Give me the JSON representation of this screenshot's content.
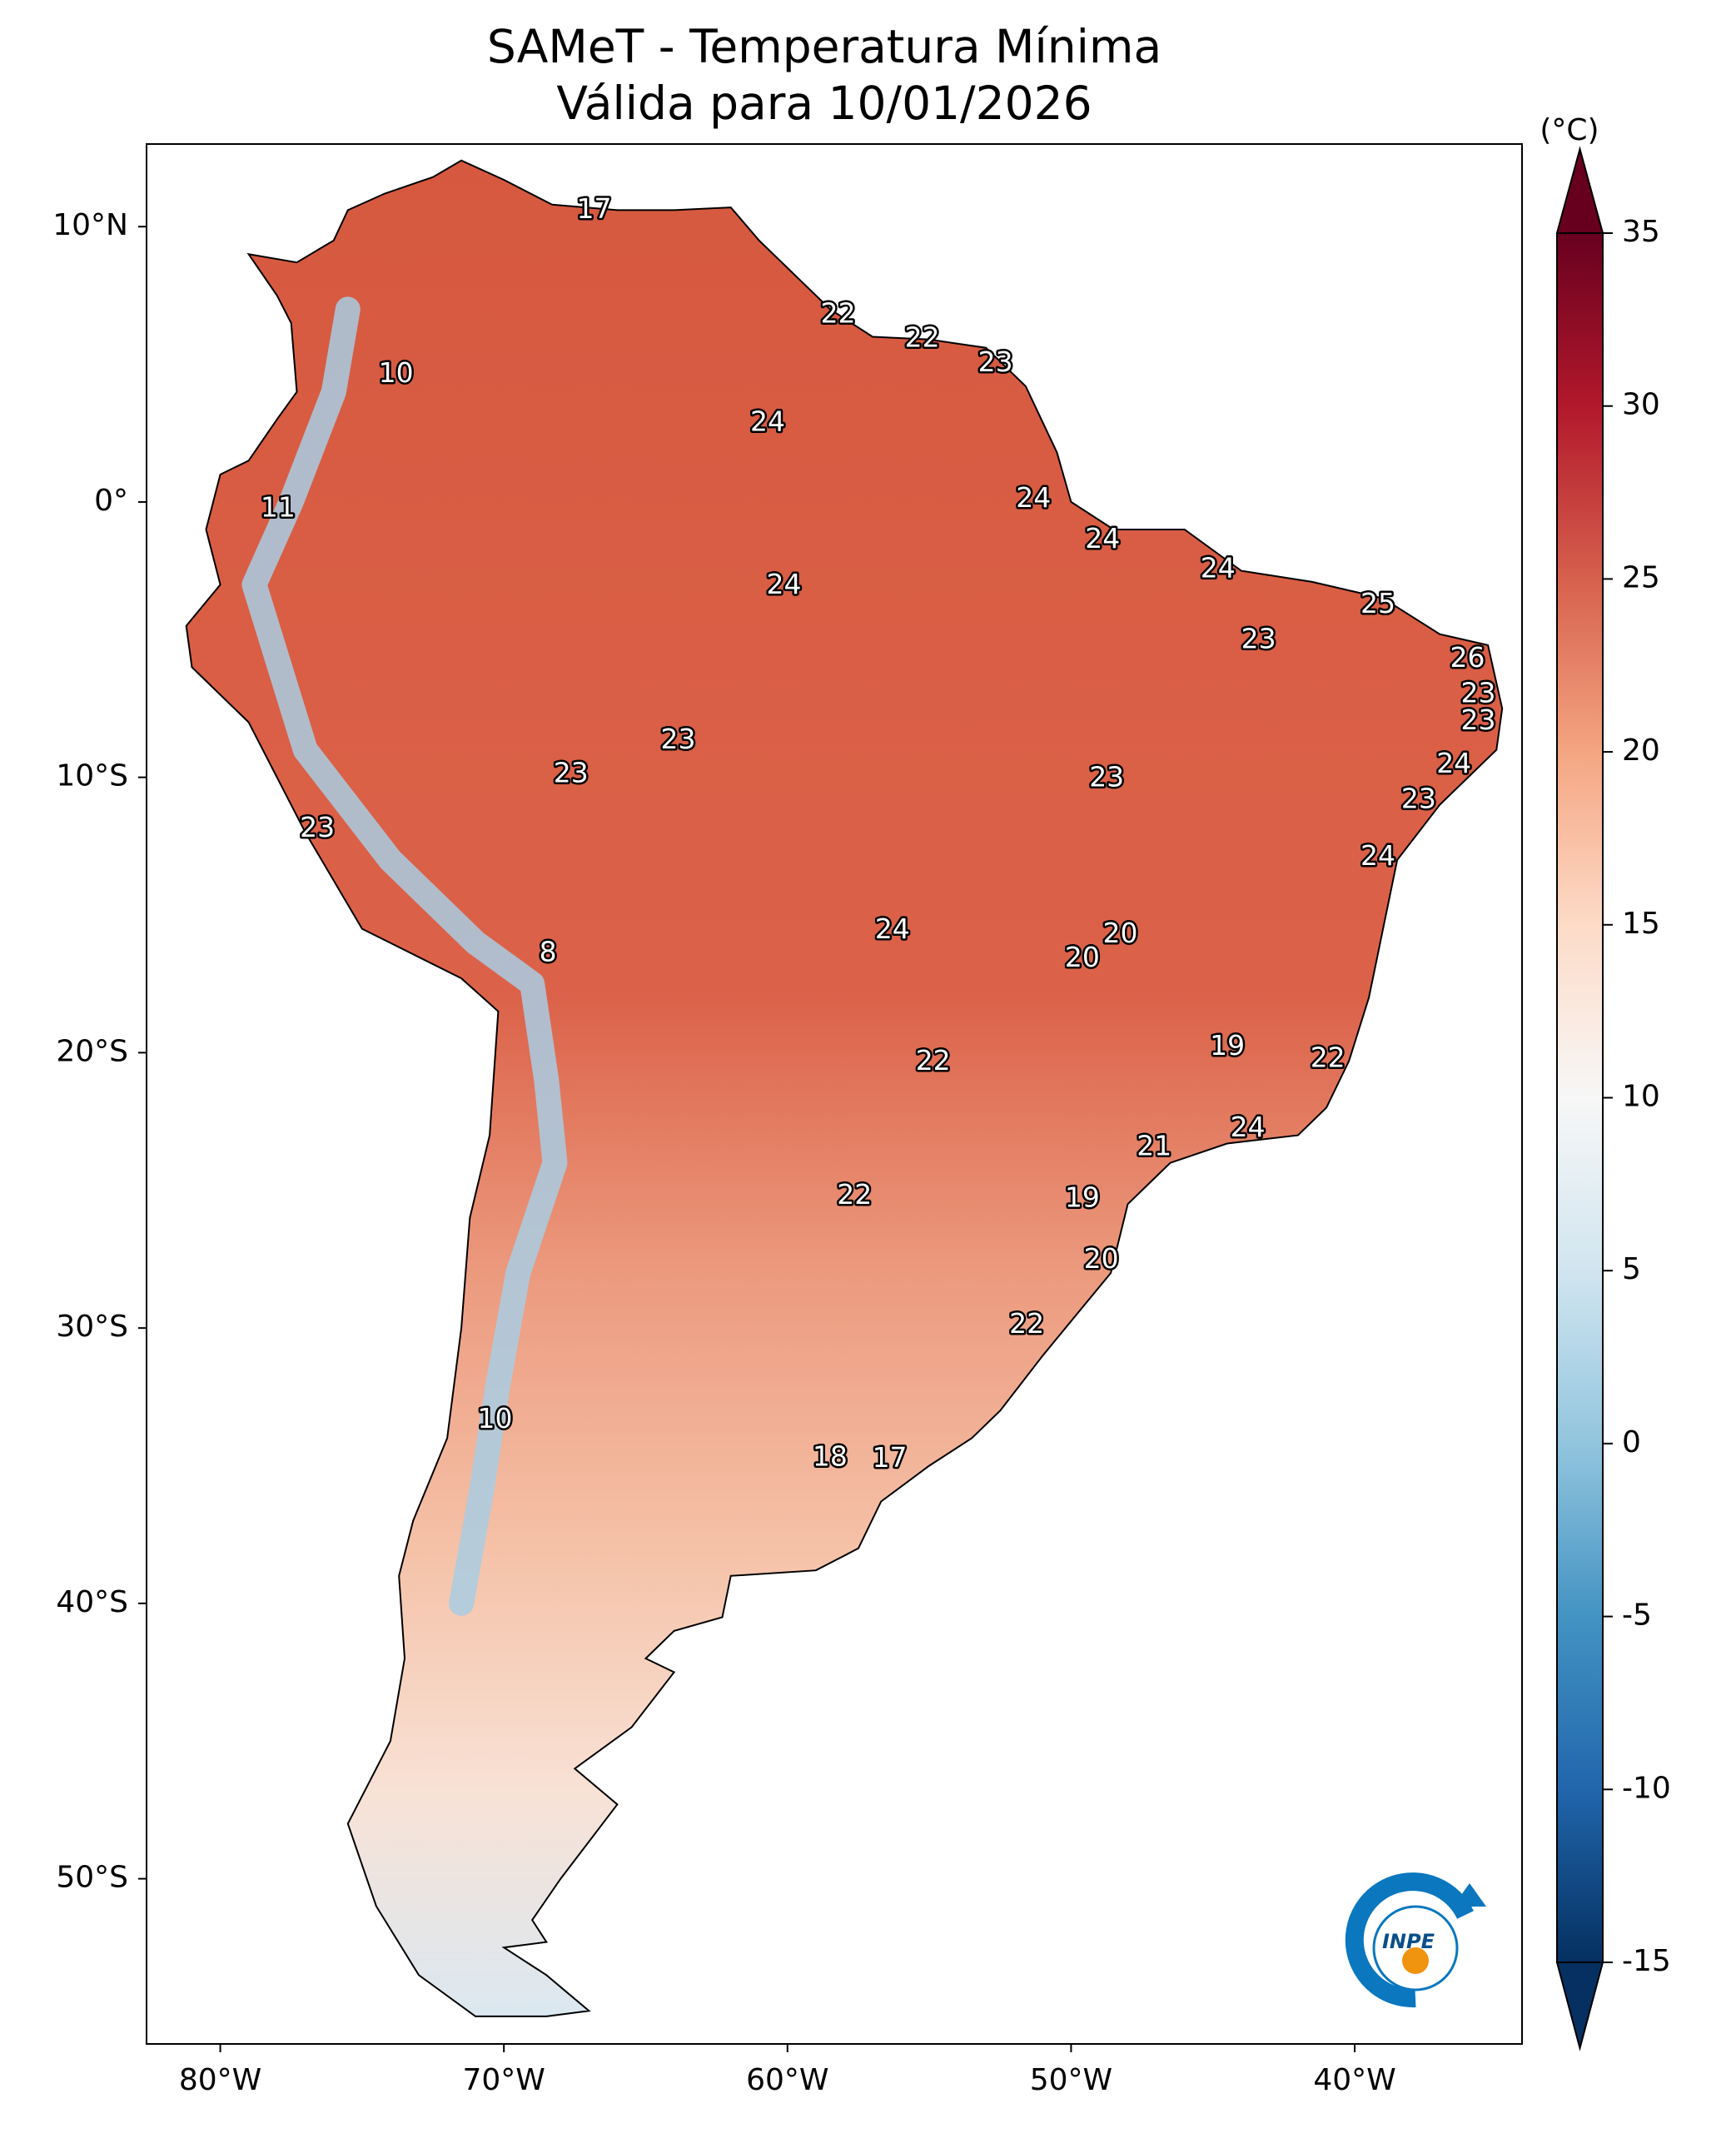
{
  "title": "SAMeT - Temperatura Mínima",
  "subtitle": "Válida para 10/01/2026",
  "map": {
    "xlim": [
      -82.6,
      -34.1
    ],
    "ylim": [
      -56.0,
      13.0
    ],
    "xticks": [
      {
        "value": -80,
        "label": "80°W"
      },
      {
        "value": -70,
        "label": "70°W"
      },
      {
        "value": -60,
        "label": "60°W"
      },
      {
        "value": -50,
        "label": "50°W"
      },
      {
        "value": -40,
        "label": "40°W"
      }
    ],
    "yticks": [
      {
        "value": 10,
        "label": "10°N"
      },
      {
        "value": 0,
        "label": "0°"
      },
      {
        "value": -10,
        "label": "10°S"
      },
      {
        "value": -20,
        "label": "20°S"
      },
      {
        "value": -30,
        "label": "30°S"
      },
      {
        "value": -40,
        "label": "40°S"
      },
      {
        "value": -50,
        "label": "50°S"
      }
    ],
    "point_values": [
      17,
      10,
      22,
      22,
      23,
      24,
      11,
      24,
      24,
      24,
      24,
      25,
      23,
      26,
      23,
      23,
      23,
      23,
      24,
      23,
      23,
      23,
      24,
      8,
      24,
      20,
      20,
      19,
      22,
      22,
      24,
      21,
      22,
      19,
      20,
      22,
      10,
      18,
      17
    ]
  },
  "colorbar": {
    "label": "(°C)",
    "lim": [
      -15,
      35
    ],
    "ticks": [
      35,
      30,
      25,
      20,
      15,
      10,
      5,
      0,
      -5,
      -10,
      -15
    ]
  },
  "logo_text": "INPE"
}
